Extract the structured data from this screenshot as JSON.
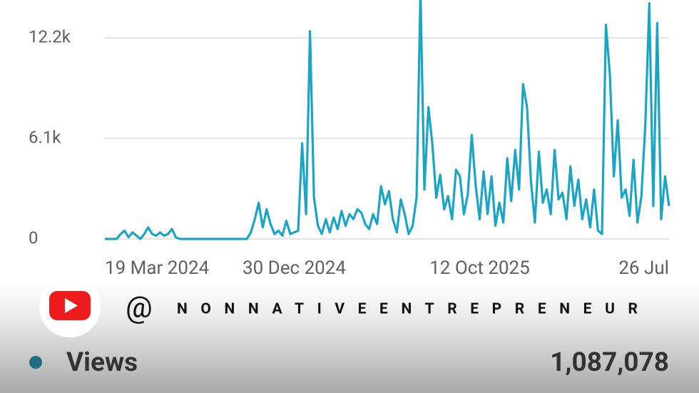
{
  "chart_data": {
    "type": "line",
    "categories": [
      "19 Mar 2024",
      null,
      null,
      null,
      null,
      null,
      null,
      null,
      null,
      null,
      null,
      null,
      null,
      null,
      null,
      null,
      null,
      null,
      null,
      null,
      null,
      null,
      null,
      null,
      null,
      null,
      null,
      null,
      null,
      null,
      null,
      null,
      null,
      null,
      null,
      null,
      null,
      null,
      null,
      null,
      null,
      null,
      null,
      null,
      null,
      null,
      null,
      null,
      "30 Dec 2024",
      null,
      null,
      null,
      null,
      null,
      null,
      null,
      null,
      null,
      null,
      null,
      null,
      null,
      null,
      null,
      null,
      null,
      null,
      null,
      null,
      null,
      null,
      null,
      null,
      null,
      null,
      null,
      null,
      null,
      null,
      null,
      null,
      null,
      null,
      null,
      null,
      null,
      null,
      null,
      null,
      null,
      null,
      null,
      null,
      null,
      null,
      "12 Oct 2025",
      null,
      null,
      null,
      null,
      null,
      null,
      null,
      null,
      null,
      null,
      null,
      null,
      null,
      null,
      null,
      null,
      null,
      null,
      null,
      null,
      null,
      null,
      null,
      null,
      null,
      null,
      null,
      null,
      null,
      null,
      null,
      null,
      null,
      null,
      null,
      null,
      null,
      null,
      null,
      null,
      null,
      null,
      null,
      null,
      null,
      null,
      null,
      "26 Jul"
    ],
    "series": [
      {
        "name": "Views",
        "color": "#1aa5c6",
        "values": [
          0,
          0,
          0,
          0,
          300,
          500,
          100,
          400,
          200,
          0,
          300,
          700,
          300,
          200,
          400,
          200,
          300,
          600,
          100,
          0,
          0,
          0,
          0,
          0,
          0,
          0,
          0,
          0,
          0,
          0,
          0,
          0,
          0,
          0,
          0,
          0,
          0,
          400,
          1200,
          2200,
          700,
          1800,
          900,
          300,
          500,
          200,
          1100,
          300,
          400,
          500,
          5800,
          1500,
          12600,
          2500,
          800,
          300,
          1200,
          400,
          1300,
          600,
          1700,
          800,
          1500,
          1200,
          1800,
          1600,
          900,
          600,
          1500,
          900,
          3200,
          2100,
          2900,
          1200,
          400,
          2400,
          1500,
          300,
          800,
          2500,
          15000,
          3000,
          8000,
          5800,
          2500,
          3900,
          1800,
          2600,
          1200,
          4200,
          3800,
          1500,
          2700,
          6300,
          3200,
          1200,
          4100,
          1500,
          3800,
          800,
          2200,
          1000,
          4900,
          2300,
          5400,
          3000,
          9400,
          8000,
          3500,
          1000,
          5300,
          2200,
          3000,
          1500,
          5400,
          2400,
          2800,
          1200,
          4400,
          2000,
          3600,
          1200,
          2400,
          700,
          3000,
          500,
          300,
          13000,
          10000,
          3800,
          7200,
          2500,
          3000,
          1400,
          4800,
          1000,
          2600,
          7000,
          14300,
          2000,
          13100,
          1200,
          3800,
          2000
        ]
      }
    ],
    "ylim": [
      0,
      14500
    ],
    "yticks": [
      0,
      {
        "value": 6100,
        "label": "6.1k"
      },
      {
        "value": 12200,
        "label": "12.2k"
      }
    ],
    "grid": true
  },
  "summary": {
    "total": "1,087,078"
  },
  "handle": {
    "at": "@",
    "name": "NONNATIVEENTREPRENEUR"
  }
}
